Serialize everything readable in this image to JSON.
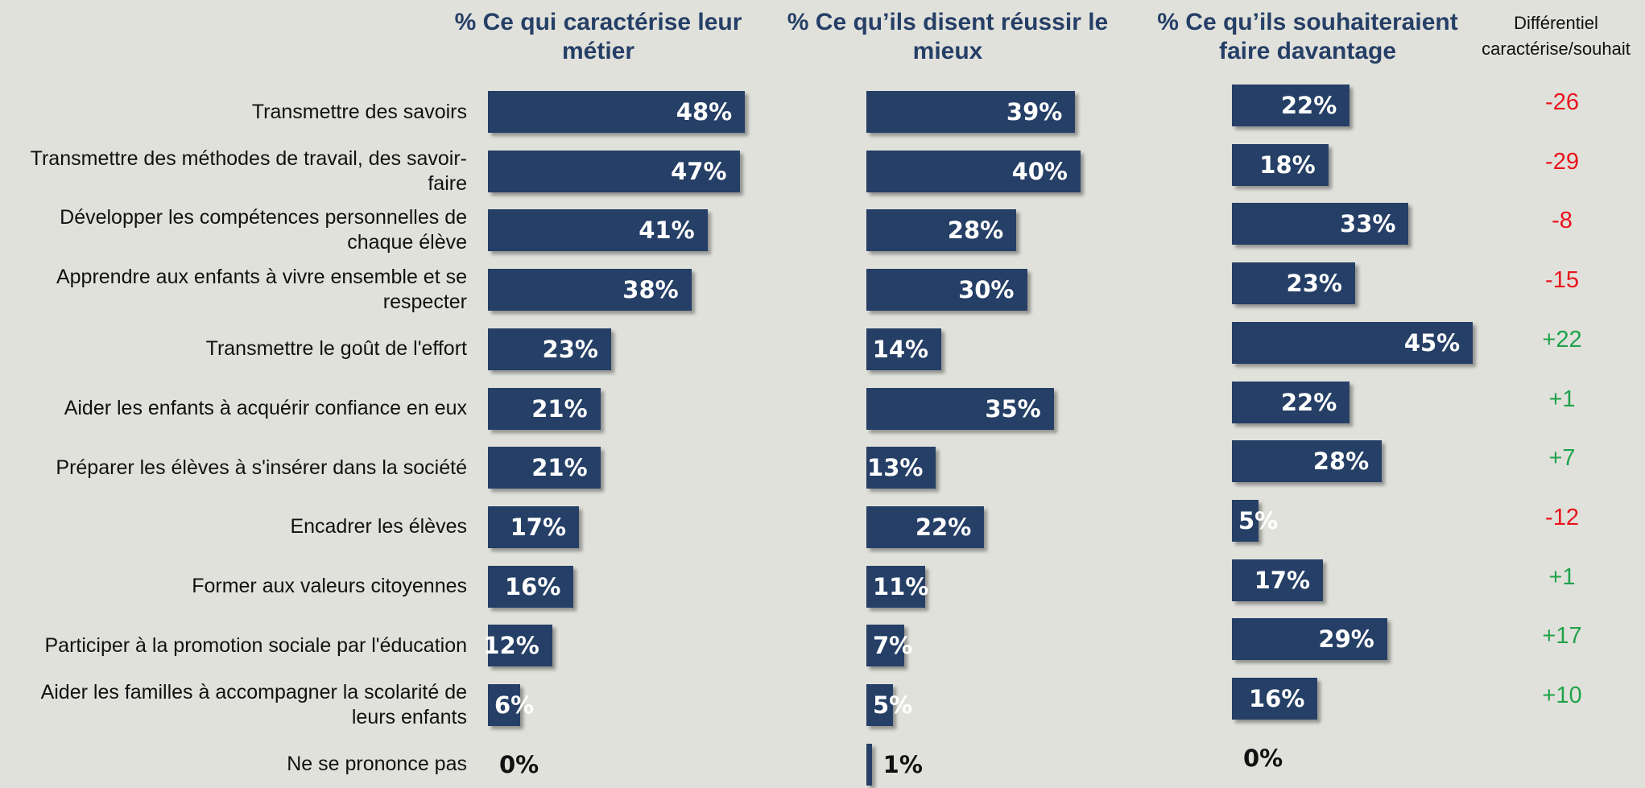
{
  "chart_data": {
    "type": "bar",
    "categories": [
      "Transmettre des savoirs",
      "Transmettre des méthodes de travail, des savoir-faire",
      "Développer les compétences personnelles de chaque élève",
      "Apprendre aux enfants à vivre ensemble et se respecter",
      "Transmettre le goût de l'effort",
      "Aider les enfants à acquérir confiance en eux",
      "Préparer les élèves à s'insérer dans la société",
      "Encadrer les élèves",
      "Former aux valeurs citoyennes",
      "Participer à la promotion sociale par l'éducation",
      "Aider les familles à accompagner la scolarité de leurs enfants",
      "Ne se prononce pas"
    ],
    "series": [
      {
        "name": "% Ce qui caractérise leur métier",
        "color": "#253f66",
        "values": [
          48,
          47,
          41,
          38,
          23,
          21,
          21,
          17,
          16,
          12,
          6,
          0
        ],
        "value_labels": [
          "48%",
          "47%",
          "41%",
          "38%",
          "23%",
          "21%",
          "21%",
          "17%",
          "16%",
          "12%",
          "6%",
          "0%"
        ]
      },
      {
        "name": "% Ce qu’ils disent réussir le mieux",
        "color": "#253f66",
        "values": [
          39,
          40,
          28,
          30,
          14,
          35,
          13,
          22,
          11,
          7,
          5,
          1
        ],
        "value_labels": [
          "39%",
          "40%",
          "28%",
          "30%",
          "14%",
          "35%",
          "13%",
          "22%",
          "11%",
          "7%",
          "5%",
          "1%"
        ]
      },
      {
        "name": "% Ce qu’ils souhaiteraient faire davantage",
        "color": "#253f66",
        "values": [
          22,
          18,
          33,
          23,
          45,
          22,
          28,
          5,
          17,
          29,
          16,
          0
        ],
        "value_labels": [
          "22%",
          "18%",
          "33%",
          "23%",
          "45%",
          "22%",
          "28%",
          "5%",
          "17%",
          "29%",
          "16%",
          "0%"
        ]
      }
    ],
    "differential": {
      "name": "Différentiel caractérise/souhait",
      "positive_color": "#1fa34a",
      "negative_color": "#e8141c",
      "values": [
        -26,
        -29,
        -8,
        -15,
        22,
        1,
        7,
        -12,
        1,
        17,
        10,
        null
      ],
      "value_labels": [
        "-26",
        "-29",
        "-8",
        "-15",
        "+22",
        "+1",
        "+7",
        "-12",
        "+1",
        "+17",
        "+10",
        null
      ]
    }
  }
}
